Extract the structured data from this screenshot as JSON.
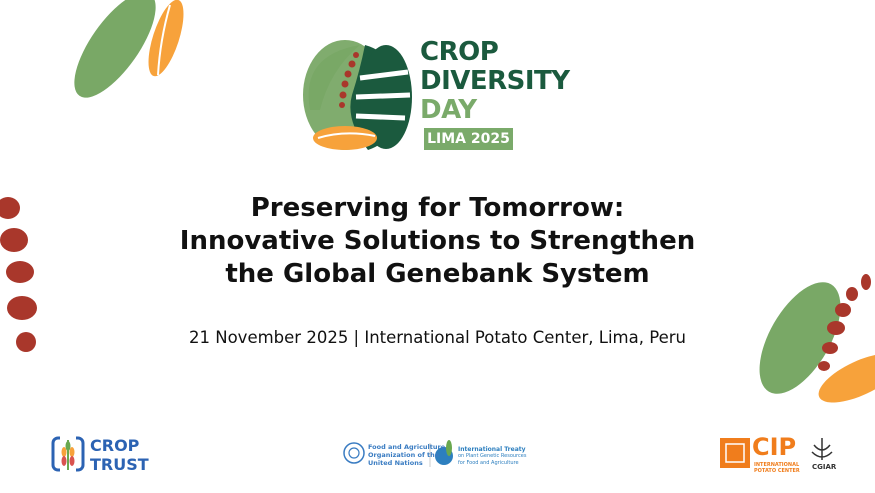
{
  "logo": {
    "line1": "CROP",
    "line2": "DIVERSITY",
    "line3": "DAY",
    "badge": "LIMA 2025"
  },
  "title": {
    "line1": "Preserving for Tomorrow:",
    "line2": "Innovative Solutions to Strengthen",
    "line3": "the Global Genebank System"
  },
  "subtitle": "21 November 2025 | International Potato Center, Lima, Peru",
  "partners": {
    "crop_trust": {
      "line1": "CROP",
      "line2": "TRUST"
    },
    "fao": {
      "line1": "Food and Agriculture",
      "line2": "Organization of the",
      "line3": "United Nations"
    },
    "treaty": {
      "line1": "International Treaty",
      "line2": "on Plant Genetic Resources",
      "line3": "for Food and Agriculture"
    },
    "cip": {
      "name": "CIP",
      "line1": "INTERNATIONAL",
      "line2": "POTATO CENTER"
    },
    "cgiar": "CGIAR"
  },
  "colors": {
    "dark_green": "#1b5a3e",
    "light_green": "#7aaa6a",
    "orange": "#f7a23b",
    "red": "#a9372b",
    "blue": "#2c63b3",
    "cip_orange": "#f07d1c"
  }
}
